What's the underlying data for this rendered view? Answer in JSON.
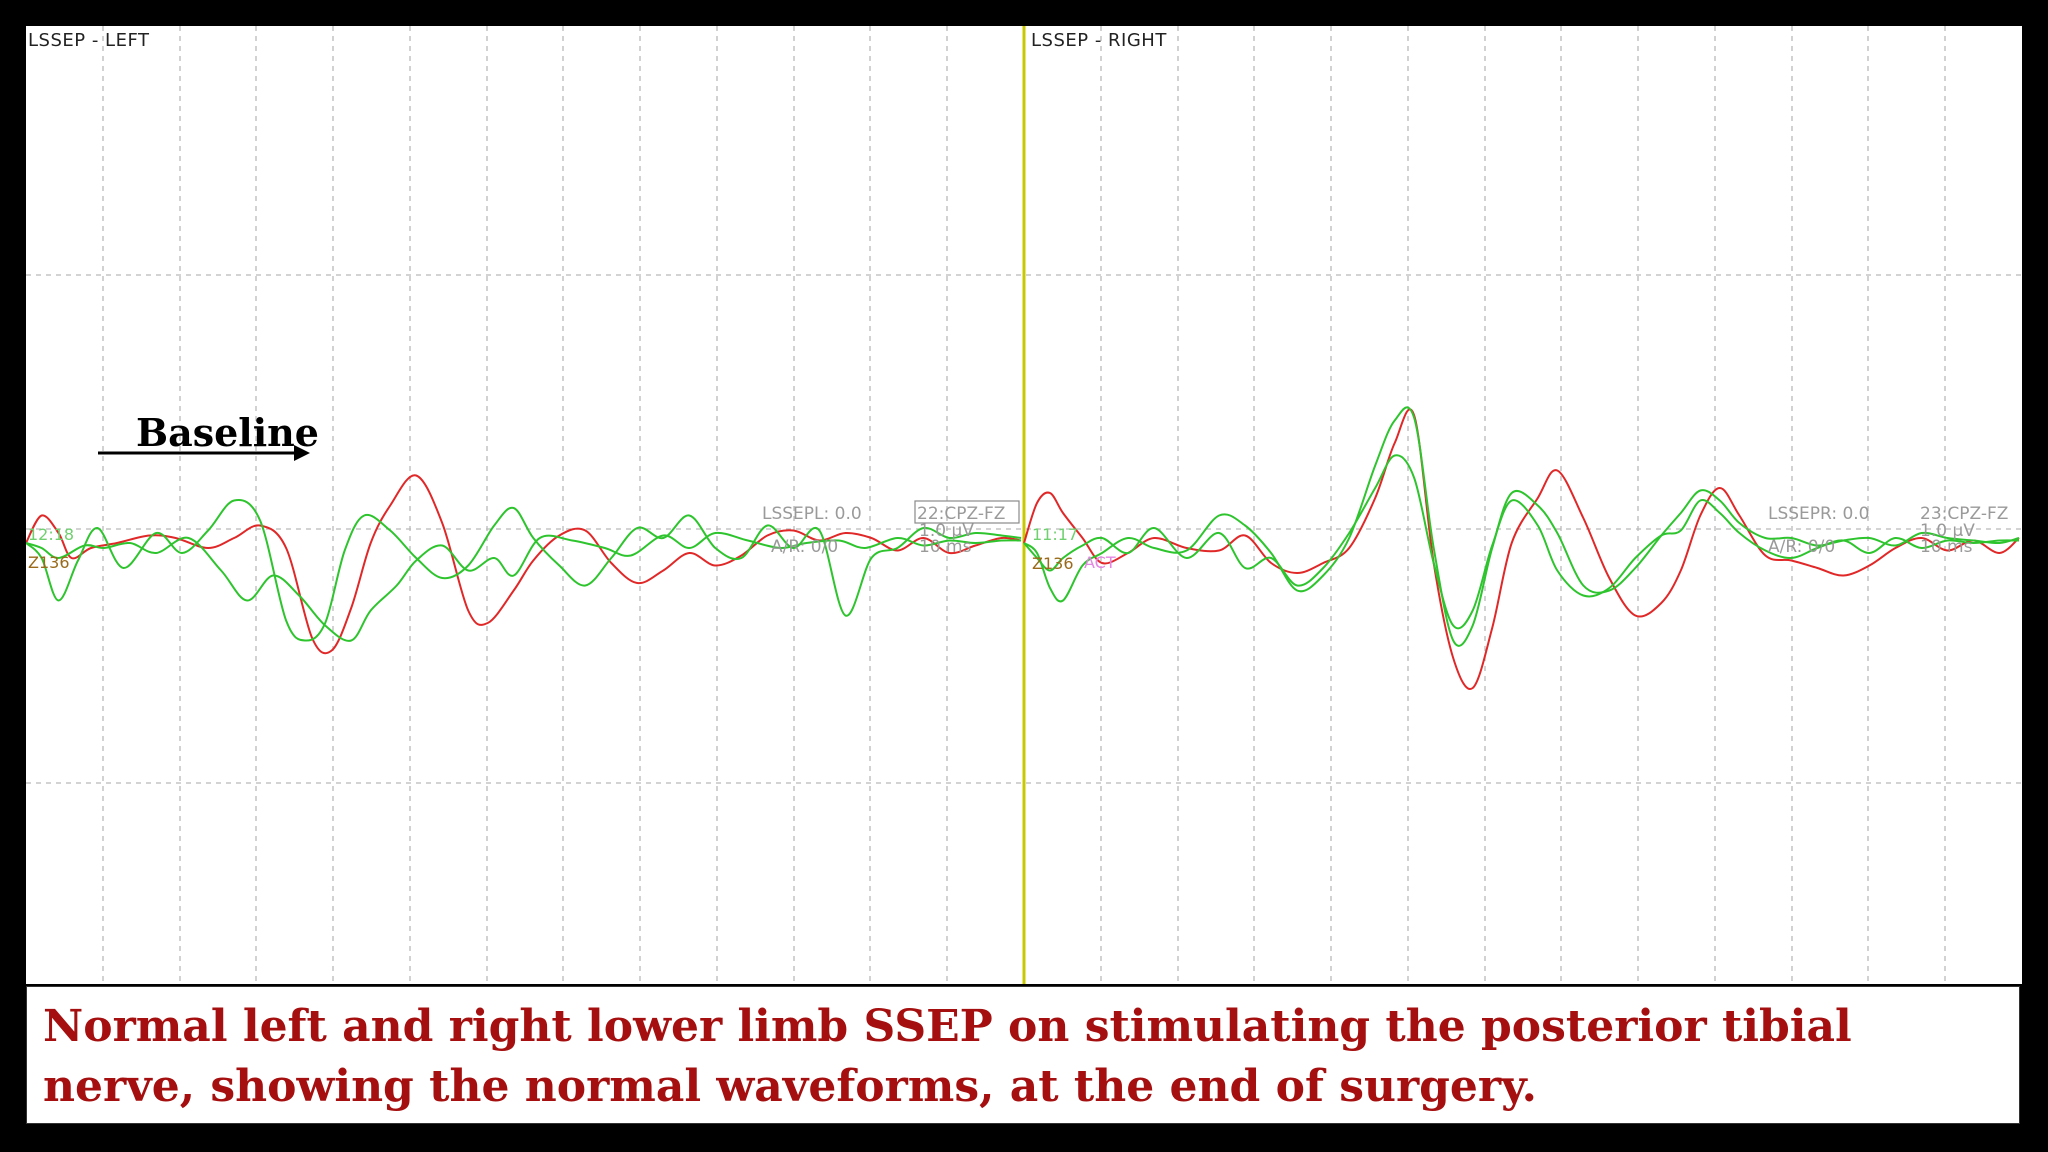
{
  "chart_data": {
    "type": "line",
    "panels": [
      {
        "title": "LSSEP - LEFT",
        "info_line1": "LSSEPL: 0.0",
        "info_channel": "22:CPZ-FZ",
        "info_line2": "A/R: 0/0",
        "info_scale": "1.0 µV",
        "info_time": "10 ms",
        "marker_green": "12:18",
        "marker_red": "Z136",
        "series": [
          {
            "color": "#e02828",
            "x": [
              0,
              12,
              25,
              35,
              50,
              70,
              95,
              115,
              140,
              160,
              180,
              200,
              220,
              235,
              250,
              265,
              280,
              300,
              320,
              340,
              355,
              375,
              390,
              410,
              430,
              450,
              470,
              490,
              510,
              530,
              550,
              570,
              590,
              610,
              630,
              650,
              670,
              690,
              710,
              730,
              750,
              765
            ],
            "y": [
              0,
              0.55,
              0.2,
              -0.3,
              -0.1,
              0,
              0.15,
              0.1,
              -0.1,
              0.1,
              0.35,
              -0.1,
              -1.9,
              -2.15,
              -1.3,
              0,
              0.75,
              1.35,
              0.4,
              -1.35,
              -1.6,
              -0.95,
              -0.35,
              0.15,
              0.25,
              -0.4,
              -0.8,
              -0.55,
              -0.2,
              -0.45,
              -0.25,
              0.15,
              0.25,
              0.05,
              0.2,
              0.1,
              -0.15,
              0.1,
              -0.2,
              -0.05,
              0.1,
              0.05
            ]
          },
          {
            "color": "#2ec42e",
            "x": [
              0,
              12,
              25,
              40,
              55,
              75,
              100,
              120,
              140,
              160,
              180,
              200,
              215,
              230,
              245,
              260,
              280,
              300,
              320,
              340,
              360,
              375,
              390,
              410,
              430,
              450,
              470,
              490,
              510,
              530,
              550,
              570,
              590,
              610,
              630,
              650,
              670,
              690,
              710,
              730,
              750,
              765
            ],
            "y": [
              0,
              -0.3,
              -1.15,
              -0.35,
              0.3,
              -0.5,
              0.2,
              -0.2,
              0.25,
              0.85,
              0.45,
              -1.55,
              -1.95,
              -1.6,
              -0.15,
              0.55,
              0.25,
              -0.3,
              -0.7,
              -0.45,
              0.35,
              0.7,
              0.1,
              -0.45,
              -0.85,
              -0.3,
              0.3,
              0.1,
              0.55,
              -0.1,
              -0.3,
              0.35,
              -0.1,
              0.25,
              -1.45,
              -0.3,
              -0.1,
              0.3,
              0.1,
              0.2,
              0.15,
              0.1
            ]
          },
          {
            "color": "#2ec42e",
            "x": [
              0,
              12,
              25,
              45,
              60,
              80,
              100,
              125,
              150,
              170,
              190,
              210,
              230,
              250,
              265,
              285,
              300,
              320,
              340,
              360,
              375,
              395,
              420,
              445,
              465,
              490,
              510,
              530,
              555,
              580,
              600,
              625,
              645,
              670,
              690,
              710,
              730,
              750,
              765
            ],
            "y": [
              0,
              -0.1,
              -0.3,
              -0.05,
              -0.1,
              0,
              -0.2,
              0.1,
              -0.55,
              -1.15,
              -0.65,
              -1.05,
              -1.65,
              -1.95,
              -1.35,
              -0.85,
              -0.35,
              -0.05,
              -0.55,
              -0.3,
              -0.65,
              0.1,
              0.05,
              -0.1,
              -0.25,
              0.15,
              -0.1,
              0.2,
              0.05,
              -0.1,
              0,
              0.05,
              -0.1,
              0.1,
              -0.05,
              0.05,
              0,
              0.05,
              0.05
            ]
          }
        ]
      },
      {
        "title": "LSSEP - RIGHT",
        "info_line1": "LSSEPR: 0.0",
        "info_channel": "23:CPZ-FZ",
        "info_line2": "A/R: 0/0",
        "info_scale": "1.0 µV",
        "info_time": "10 ms",
        "marker_green": "11:17",
        "marker_red": "Z136",
        "marker_act": "ACT",
        "series": [
          {
            "color": "#e02828",
            "x": [
              0,
              10,
              20,
              30,
              45,
              60,
              80,
              100,
              125,
              150,
              170,
              190,
              210,
              230,
              250,
              270,
              285,
              300,
              315,
              330,
              345,
              360,
              375,
              395,
              410,
              430,
              450,
              470,
              490,
              505,
              520,
              535,
              550,
              570,
              590,
              610,
              630,
              650,
              670,
              690,
              710,
              730,
              750,
              765
            ],
            "y": [
              0,
              0.8,
              1.0,
              0.6,
              0.1,
              -0.4,
              -0.2,
              0.1,
              -0.1,
              -0.15,
              0.15,
              -0.4,
              -0.6,
              -0.4,
              -0.1,
              0.9,
              2.0,
              2.55,
              -0.4,
              -2.3,
              -2.9,
              -1.7,
              0,
              0.9,
              1.45,
              0.5,
              -0.7,
              -1.45,
              -1.2,
              -0.55,
              0.55,
              1.1,
              0.55,
              -0.25,
              -0.35,
              -0.5,
              -0.65,
              -0.45,
              -0.1,
              0.1,
              -0.15,
              0.05,
              -0.2,
              0.1
            ]
          },
          {
            "color": "#2ec42e",
            "x": [
              0,
              10,
              20,
              30,
              45,
              60,
              80,
              100,
              125,
              150,
              170,
              190,
              210,
              230,
              250,
              270,
              285,
              300,
              315,
              330,
              345,
              360,
              375,
              395,
              410,
              430,
              450,
              470,
              490,
              505,
              520,
              535,
              550,
              570,
              590,
              610,
              630,
              650,
              670,
              690,
              710,
              730,
              750,
              765
            ],
            "y": [
              0,
              -0.2,
              -0.9,
              -1.15,
              -0.45,
              -0.2,
              0.1,
              -0.1,
              -0.15,
              0.55,
              0.35,
              -0.2,
              -0.95,
              -0.65,
              0.1,
              1.55,
              2.45,
              2.5,
              -0.1,
              -1.95,
              -1.65,
              -0.1,
              1.0,
              0.75,
              0.2,
              -0.85,
              -0.95,
              -0.5,
              0.15,
              0.6,
              1.05,
              0.85,
              0.4,
              0.1,
              0.1,
              -0.05,
              0.05,
              0.1,
              -0.05,
              0.2,
              0.1,
              0.05,
              0,
              0.1
            ]
          },
          {
            "color": "#2ec42e",
            "x": [
              0,
              10,
              20,
              30,
              45,
              60,
              80,
              100,
              125,
              150,
              170,
              190,
              210,
              230,
              250,
              270,
              285,
              300,
              315,
              330,
              345,
              360,
              375,
              395,
              410,
              430,
              450,
              470,
              490,
              505,
              520,
              535,
              550,
              570,
              590,
              610,
              630,
              650,
              670,
              690,
              710,
              730,
              750,
              765
            ],
            "y": [
              0,
              -0.3,
              -0.55,
              -0.3,
              -0.05,
              0.1,
              -0.2,
              0.3,
              -0.3,
              0.2,
              -0.5,
              -0.3,
              -0.85,
              -0.5,
              0.2,
              1.1,
              1.75,
              1.3,
              -0.4,
              -1.65,
              -1.35,
              -0.05,
              0.85,
              0.35,
              -0.55,
              -1.05,
              -0.9,
              -0.3,
              0.15,
              0.25,
              0.85,
              0.6,
              0.2,
              -0.15,
              -0.3,
              -0.1,
              0.05,
              -0.2,
              0.1,
              -0.1,
              0.05,
              0,
              0.05,
              0.05
            ]
          }
        ]
      }
    ]
  },
  "annotation": {
    "label": "Baseline"
  },
  "caption": "Normal left and right lower limb SSEP on stimulating the posterior tibial nerve, showing the normal waveforms, at the end of surgery.",
  "colors": {
    "divider": "#c8c800",
    "caption": "#a50f0f",
    "red_trace": "#e02828",
    "green_trace": "#2ec42e"
  }
}
